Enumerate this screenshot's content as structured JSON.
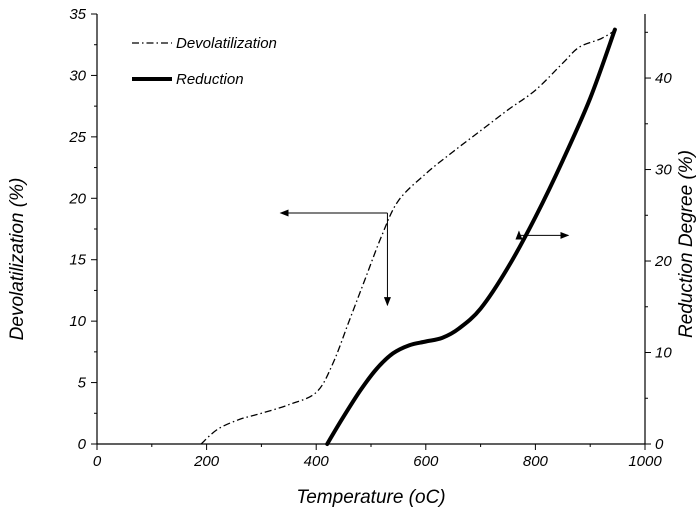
{
  "chart_data": {
    "type": "line",
    "xlabel": "Temperature (oC)",
    "ylabel": "Devolatilization (%)",
    "y2label": "Reduction Degree (%)",
    "xlim": [
      0,
      1000
    ],
    "ylim": [
      0,
      35
    ],
    "y2lim": [
      0,
      47
    ],
    "x_ticks": [
      0,
      200,
      400,
      600,
      800,
      1000
    ],
    "y_ticks": [
      0,
      5,
      10,
      15,
      20,
      25,
      30,
      35
    ],
    "y2_ticks": [
      0,
      10,
      20,
      30,
      40
    ],
    "grid": false,
    "legend_position": "top-left",
    "series": [
      {
        "name": "Devolatilization",
        "axis": "left",
        "style": "dash-dot",
        "color": "#000000",
        "points": [
          [
            190,
            0
          ],
          [
            220,
            1.2
          ],
          [
            260,
            2.0
          ],
          [
            300,
            2.5
          ],
          [
            350,
            3.2
          ],
          [
            400,
            4.2
          ],
          [
            430,
            6.5
          ],
          [
            460,
            10.0
          ],
          [
            490,
            13.5
          ],
          [
            520,
            17.0
          ],
          [
            550,
            19.8
          ],
          [
            600,
            22.0
          ],
          [
            650,
            23.8
          ],
          [
            700,
            25.5
          ],
          [
            750,
            27.2
          ],
          [
            800,
            28.8
          ],
          [
            850,
            31.0
          ],
          [
            880,
            32.3
          ],
          [
            920,
            33.0
          ],
          [
            950,
            33.8
          ]
        ]
      },
      {
        "name": "Reduction",
        "axis": "right",
        "style": "solid-thick",
        "color": "#000000",
        "points": [
          [
            420,
            0
          ],
          [
            450,
            3.0
          ],
          [
            480,
            5.8
          ],
          [
            510,
            8.2
          ],
          [
            540,
            9.9
          ],
          [
            570,
            10.8
          ],
          [
            600,
            11.2
          ],
          [
            630,
            11.6
          ],
          [
            660,
            12.6
          ],
          [
            700,
            14.8
          ],
          [
            750,
            19.3
          ],
          [
            800,
            24.8
          ],
          [
            850,
            31.0
          ],
          [
            900,
            37.8
          ],
          [
            945,
            45.3
          ]
        ]
      }
    ],
    "annotations": [
      {
        "type": "arrow-pair",
        "target_axis": "left",
        "x": 530,
        "y": 18.8,
        "to_x": 335,
        "to_y": 11.3
      },
      {
        "type": "arrow-pair",
        "target_axis": "right",
        "x": 770,
        "y": 22.8,
        "to_x": 860,
        "to_y": 17.3
      }
    ]
  }
}
